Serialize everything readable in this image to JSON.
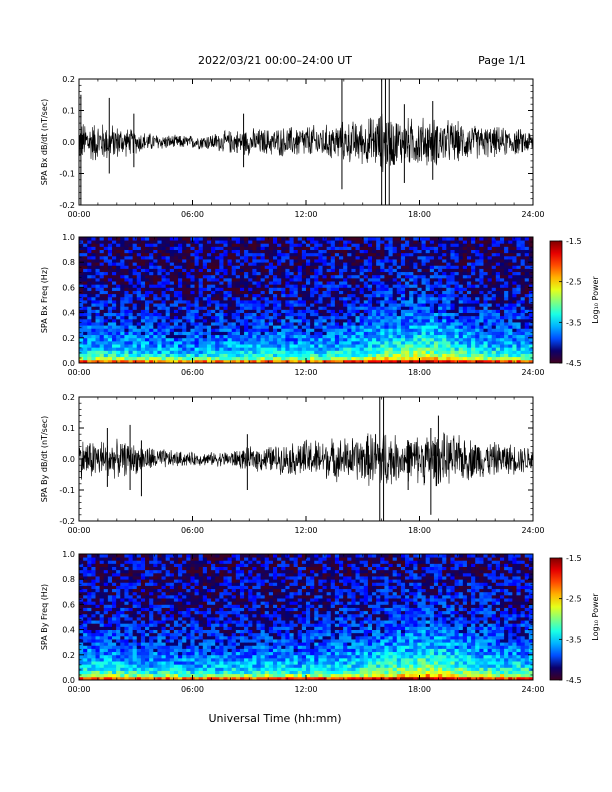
{
  "header": {
    "date_range": "2022/03/21  00:00–24:00 UT",
    "page": "Page 1/1"
  },
  "xlabel": "Universal Time (hh:mm)",
  "colors": {
    "trace": "#000000",
    "background": "#ffffff"
  },
  "chart_data": [
    {
      "type": "line",
      "ylabel": "SPA Bx dB/dt (nT/sec)",
      "xlim": [
        0,
        24
      ],
      "ylim": [
        -0.2,
        0.2
      ],
      "xticks": [
        "00:00",
        "06:00",
        "12:00",
        "18:00",
        "24:00"
      ],
      "yticks": [
        "-0.2",
        "-0.1",
        "0.0",
        "0.1",
        "0.2"
      ],
      "envelope": {
        "x": [
          0,
          1,
          2,
          3,
          4,
          5,
          6,
          7,
          8,
          9,
          10,
          11,
          12,
          13,
          14,
          15,
          16,
          17,
          18,
          19,
          20,
          21,
          22,
          23,
          24
        ],
        "amplitude": [
          0.06,
          0.06,
          0.05,
          0.035,
          0.025,
          0.02,
          0.02,
          0.025,
          0.035,
          0.04,
          0.04,
          0.045,
          0.05,
          0.05,
          0.06,
          0.065,
          0.09,
          0.07,
          0.075,
          0.07,
          0.06,
          0.05,
          0.045,
          0.04,
          0.035
        ]
      },
      "spikes": [
        {
          "x": 0.1,
          "min": -0.2,
          "max": 0.15
        },
        {
          "x": 1.6,
          "min": -0.1,
          "max": 0.14
        },
        {
          "x": 2.9,
          "min": -0.08,
          "max": 0.09
        },
        {
          "x": 8.7,
          "min": -0.08,
          "max": 0.09
        },
        {
          "x": 13.9,
          "min": -0.15,
          "max": 0.2
        },
        {
          "x": 16.0,
          "min": -0.2,
          "max": 0.2
        },
        {
          "x": 16.2,
          "min": -0.2,
          "max": 0.2
        },
        {
          "x": 16.4,
          "min": -0.2,
          "max": 0.2
        },
        {
          "x": 17.2,
          "min": -0.13,
          "max": 0.12
        },
        {
          "x": 18.7,
          "min": -0.12,
          "max": 0.13
        }
      ]
    },
    {
      "type": "heatmap",
      "ylabel": "SPA Bx Freq (Hz)",
      "colorbar_label": "Log₁₀ Power",
      "xlim": [
        0,
        24
      ],
      "ylim": [
        0,
        1.0
      ],
      "clim": [
        -4.5,
        -1.5
      ],
      "xticks": [
        "00:00",
        "06:00",
        "12:00",
        "18:00",
        "24:00"
      ],
      "yticks": [
        "0.0",
        "0.2",
        "0.4",
        "0.6",
        "0.8",
        "1.0"
      ],
      "cticks": [
        "-1.5",
        "-2.5",
        "-3.5",
        "-4.5"
      ],
      "activity": {
        "x": [
          0,
          2,
          4,
          6,
          8,
          10,
          12,
          14,
          15,
          16,
          17,
          18,
          19,
          20,
          22,
          24
        ],
        "level": [
          0.25,
          0.2,
          0.1,
          0.05,
          0.12,
          0.15,
          0.15,
          0.25,
          0.35,
          0.5,
          0.6,
          0.75,
          0.65,
          0.45,
          0.25,
          0.2
        ]
      }
    },
    {
      "type": "line",
      "ylabel": "SPA By dB/dt (nT/sec)",
      "xlim": [
        0,
        24
      ],
      "ylim": [
        -0.2,
        0.2
      ],
      "xticks": [
        "00:00",
        "06:00",
        "12:00",
        "18:00",
        "24:00"
      ],
      "yticks": [
        "-0.2",
        "-0.1",
        "0.0",
        "0.1",
        "0.2"
      ],
      "envelope": {
        "x": [
          0,
          1,
          2,
          3,
          4,
          5,
          6,
          7,
          8,
          9,
          10,
          11,
          12,
          13,
          14,
          15,
          16,
          17,
          18,
          19,
          20,
          21,
          22,
          23,
          24
        ],
        "amplitude": [
          0.06,
          0.06,
          0.055,
          0.045,
          0.035,
          0.025,
          0.02,
          0.02,
          0.025,
          0.035,
          0.04,
          0.045,
          0.06,
          0.06,
          0.065,
          0.07,
          0.1,
          0.06,
          0.075,
          0.08,
          0.07,
          0.06,
          0.05,
          0.045,
          0.04
        ]
      },
      "spikes": [
        {
          "x": 1.5,
          "min": -0.09,
          "max": 0.1
        },
        {
          "x": 2.7,
          "min": -0.1,
          "max": 0.11
        },
        {
          "x": 3.3,
          "min": -0.12,
          "max": 0.06
        },
        {
          "x": 8.9,
          "min": -0.1,
          "max": 0.08
        },
        {
          "x": 15.9,
          "min": -0.2,
          "max": 0.2
        },
        {
          "x": 16.1,
          "min": -0.2,
          "max": 0.2
        },
        {
          "x": 17.4,
          "min": -0.1,
          "max": 0.06
        },
        {
          "x": 18.6,
          "min": -0.18,
          "max": 0.1
        },
        {
          "x": 19.0,
          "min": -0.08,
          "max": 0.14
        }
      ]
    },
    {
      "type": "heatmap",
      "ylabel": "SPA By Freq (Hz)",
      "colorbar_label": "Log₁₀ Power",
      "xlim": [
        0,
        24
      ],
      "ylim": [
        0,
        1.0
      ],
      "clim": [
        -4.5,
        -1.5
      ],
      "xticks": [
        "00:00",
        "06:00",
        "12:00",
        "18:00",
        "24:00"
      ],
      "yticks": [
        "0.0",
        "0.2",
        "0.4",
        "0.6",
        "0.8",
        "1.0"
      ],
      "cticks": [
        "-1.5",
        "-2.5",
        "-3.5",
        "-4.5"
      ],
      "activity": {
        "x": [
          0,
          2,
          4,
          6,
          8,
          10,
          12,
          14,
          15,
          16,
          17,
          18,
          19,
          20,
          22,
          24
        ],
        "level": [
          0.3,
          0.25,
          0.15,
          0.1,
          0.15,
          0.2,
          0.2,
          0.3,
          0.4,
          0.55,
          0.6,
          0.8,
          0.75,
          0.55,
          0.35,
          0.3
        ]
      }
    }
  ]
}
